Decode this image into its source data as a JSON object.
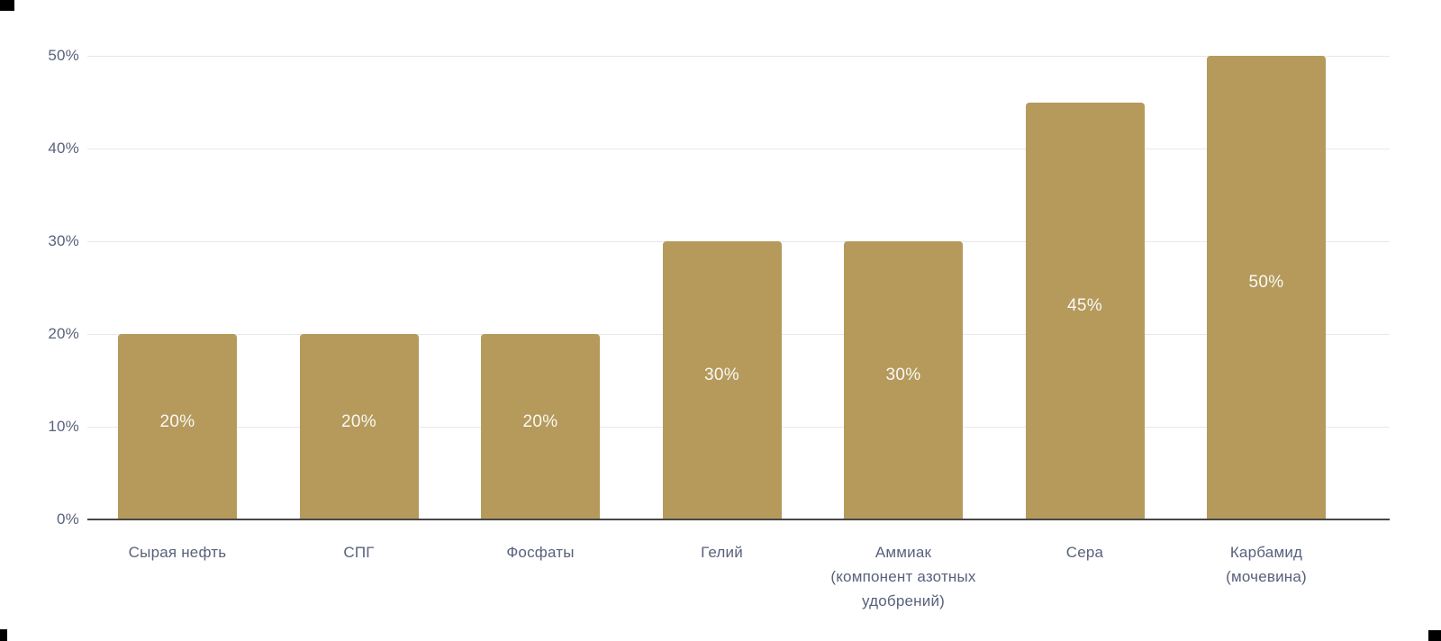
{
  "page": {
    "background_color": "#ffffff"
  },
  "chart_data": {
    "type": "bar",
    "title": "",
    "categories": [
      "Сырая нефть",
      "СПГ",
      "Фосфаты",
      "Гелий",
      "Аммиак\n(компонент азотных\nудобрений)",
      "Сера",
      "Карбамид\n(мочевина)"
    ],
    "values": [
      20,
      20,
      20,
      30,
      30,
      45,
      50
    ],
    "bar_labels": [
      "20%",
      "20%",
      "20%",
      "30%",
      "30%",
      "45%",
      "50%"
    ],
    "y_tick_labels": [
      "0%",
      "10%",
      "20%",
      "30%",
      "40%",
      "50%"
    ],
    "y_tick_values": [
      0,
      10,
      20,
      30,
      40,
      50
    ],
    "ylim": [
      0,
      50
    ],
    "xlabel": "",
    "ylabel": "",
    "legend_position": "none",
    "grid": "horizontal",
    "bar_color": "#b59a5c",
    "bar_label_color": "#faf8f4",
    "tick_label_color": "#59617c",
    "grid_color": "#e8e8ea",
    "axis_line_color": "#474747"
  }
}
